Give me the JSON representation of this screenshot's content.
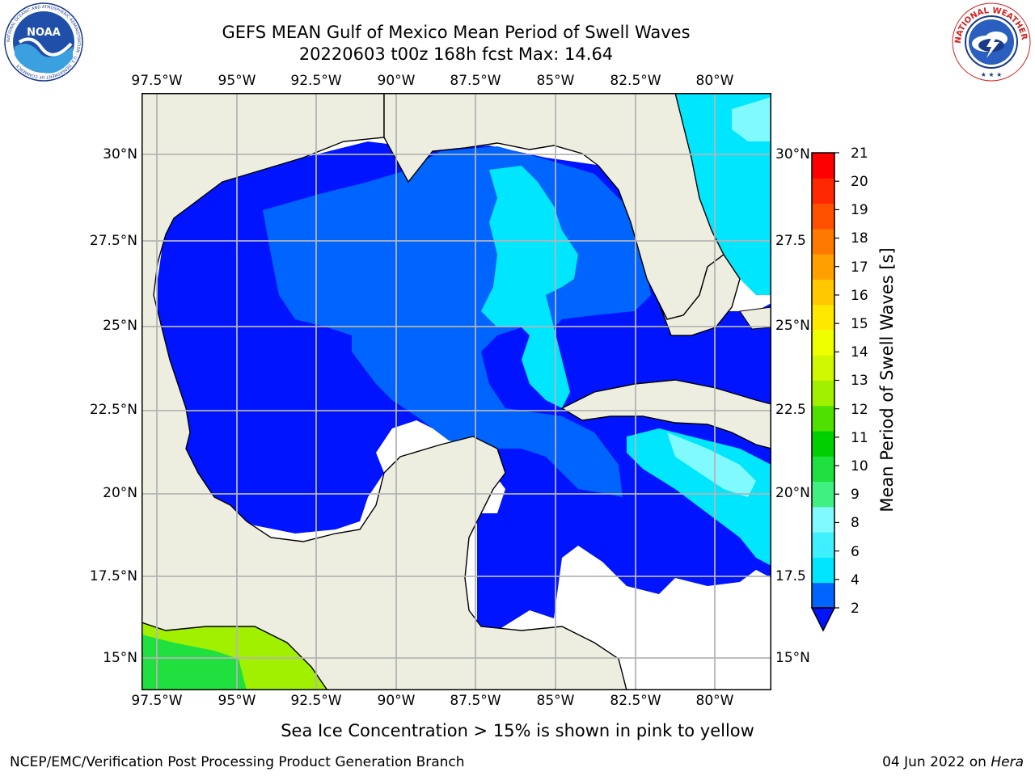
{
  "title": {
    "line1": "GEFS MEAN Gulf of Mexico Mean Period of Swell Waves",
    "line2": "20220603 t00z 168h fcst   Max: 14.64"
  },
  "logos": {
    "left": {
      "name": "noaa-logo",
      "text": "NOAA",
      "ring_text": "NATIONAL OCEANIC AND ATMOSPHERIC ADMINISTRATION · U.S. DEPARTMENT OF COMMERCE"
    },
    "right": {
      "name": "nws-logo",
      "ring_text": "NATIONAL WEATHER SERVICE"
    }
  },
  "map": {
    "lon_range": [
      -98.5,
      -79.1
    ],
    "lat_range": [
      14.0,
      31.8
    ],
    "grid": true,
    "lon_ticks": [
      "97.5°W",
      "95°W",
      "92.5°W",
      "90°W",
      "87.5°W",
      "85°W",
      "82.5°W",
      "80°W"
    ],
    "lat_ticks_left": [
      "30°N",
      "27.5°N",
      "25°N",
      "22.5°N",
      "20°N",
      "17.5°N",
      "15°N"
    ],
    "lat_ticks_right": [
      "30°N",
      "27.5",
      "25°N",
      "22.5",
      "20°N",
      "17.5",
      "15°N"
    ],
    "colors": {
      "land": "#eeeee0",
      "missing": "#ffffff",
      "grid": "#b4b4b4",
      "coast": "#000000"
    }
  },
  "colorbar": {
    "label": "Mean Period of Swell Waves [s]",
    "ticks": [
      "21",
      "20",
      "19",
      "18",
      "17",
      "16",
      "15",
      "14",
      "13",
      "12",
      "11",
      "10",
      "9",
      "8",
      "6",
      "4",
      "2"
    ],
    "colors": [
      "#0064ff",
      "#00e6ff",
      "#40f0ff",
      "#80faff",
      "#40f080",
      "#20e040",
      "#00d000",
      "#50e000",
      "#a0f000",
      "#d0f800",
      "#f0ff00",
      "#ffe800",
      "#ffc800",
      "#ffa000",
      "#ff7800",
      "#ff5000",
      "#ff2800",
      "#ff0000"
    ],
    "under_color": "#0014ff"
  },
  "note": "Sea Ice Concentration > 15% is shown in pink to yellow",
  "footer": {
    "left": "NCEP/EMC/Verification Post Processing Product Generation Branch",
    "right_date": "04 Jun 2022 on ",
    "right_machine": "Hera"
  }
}
